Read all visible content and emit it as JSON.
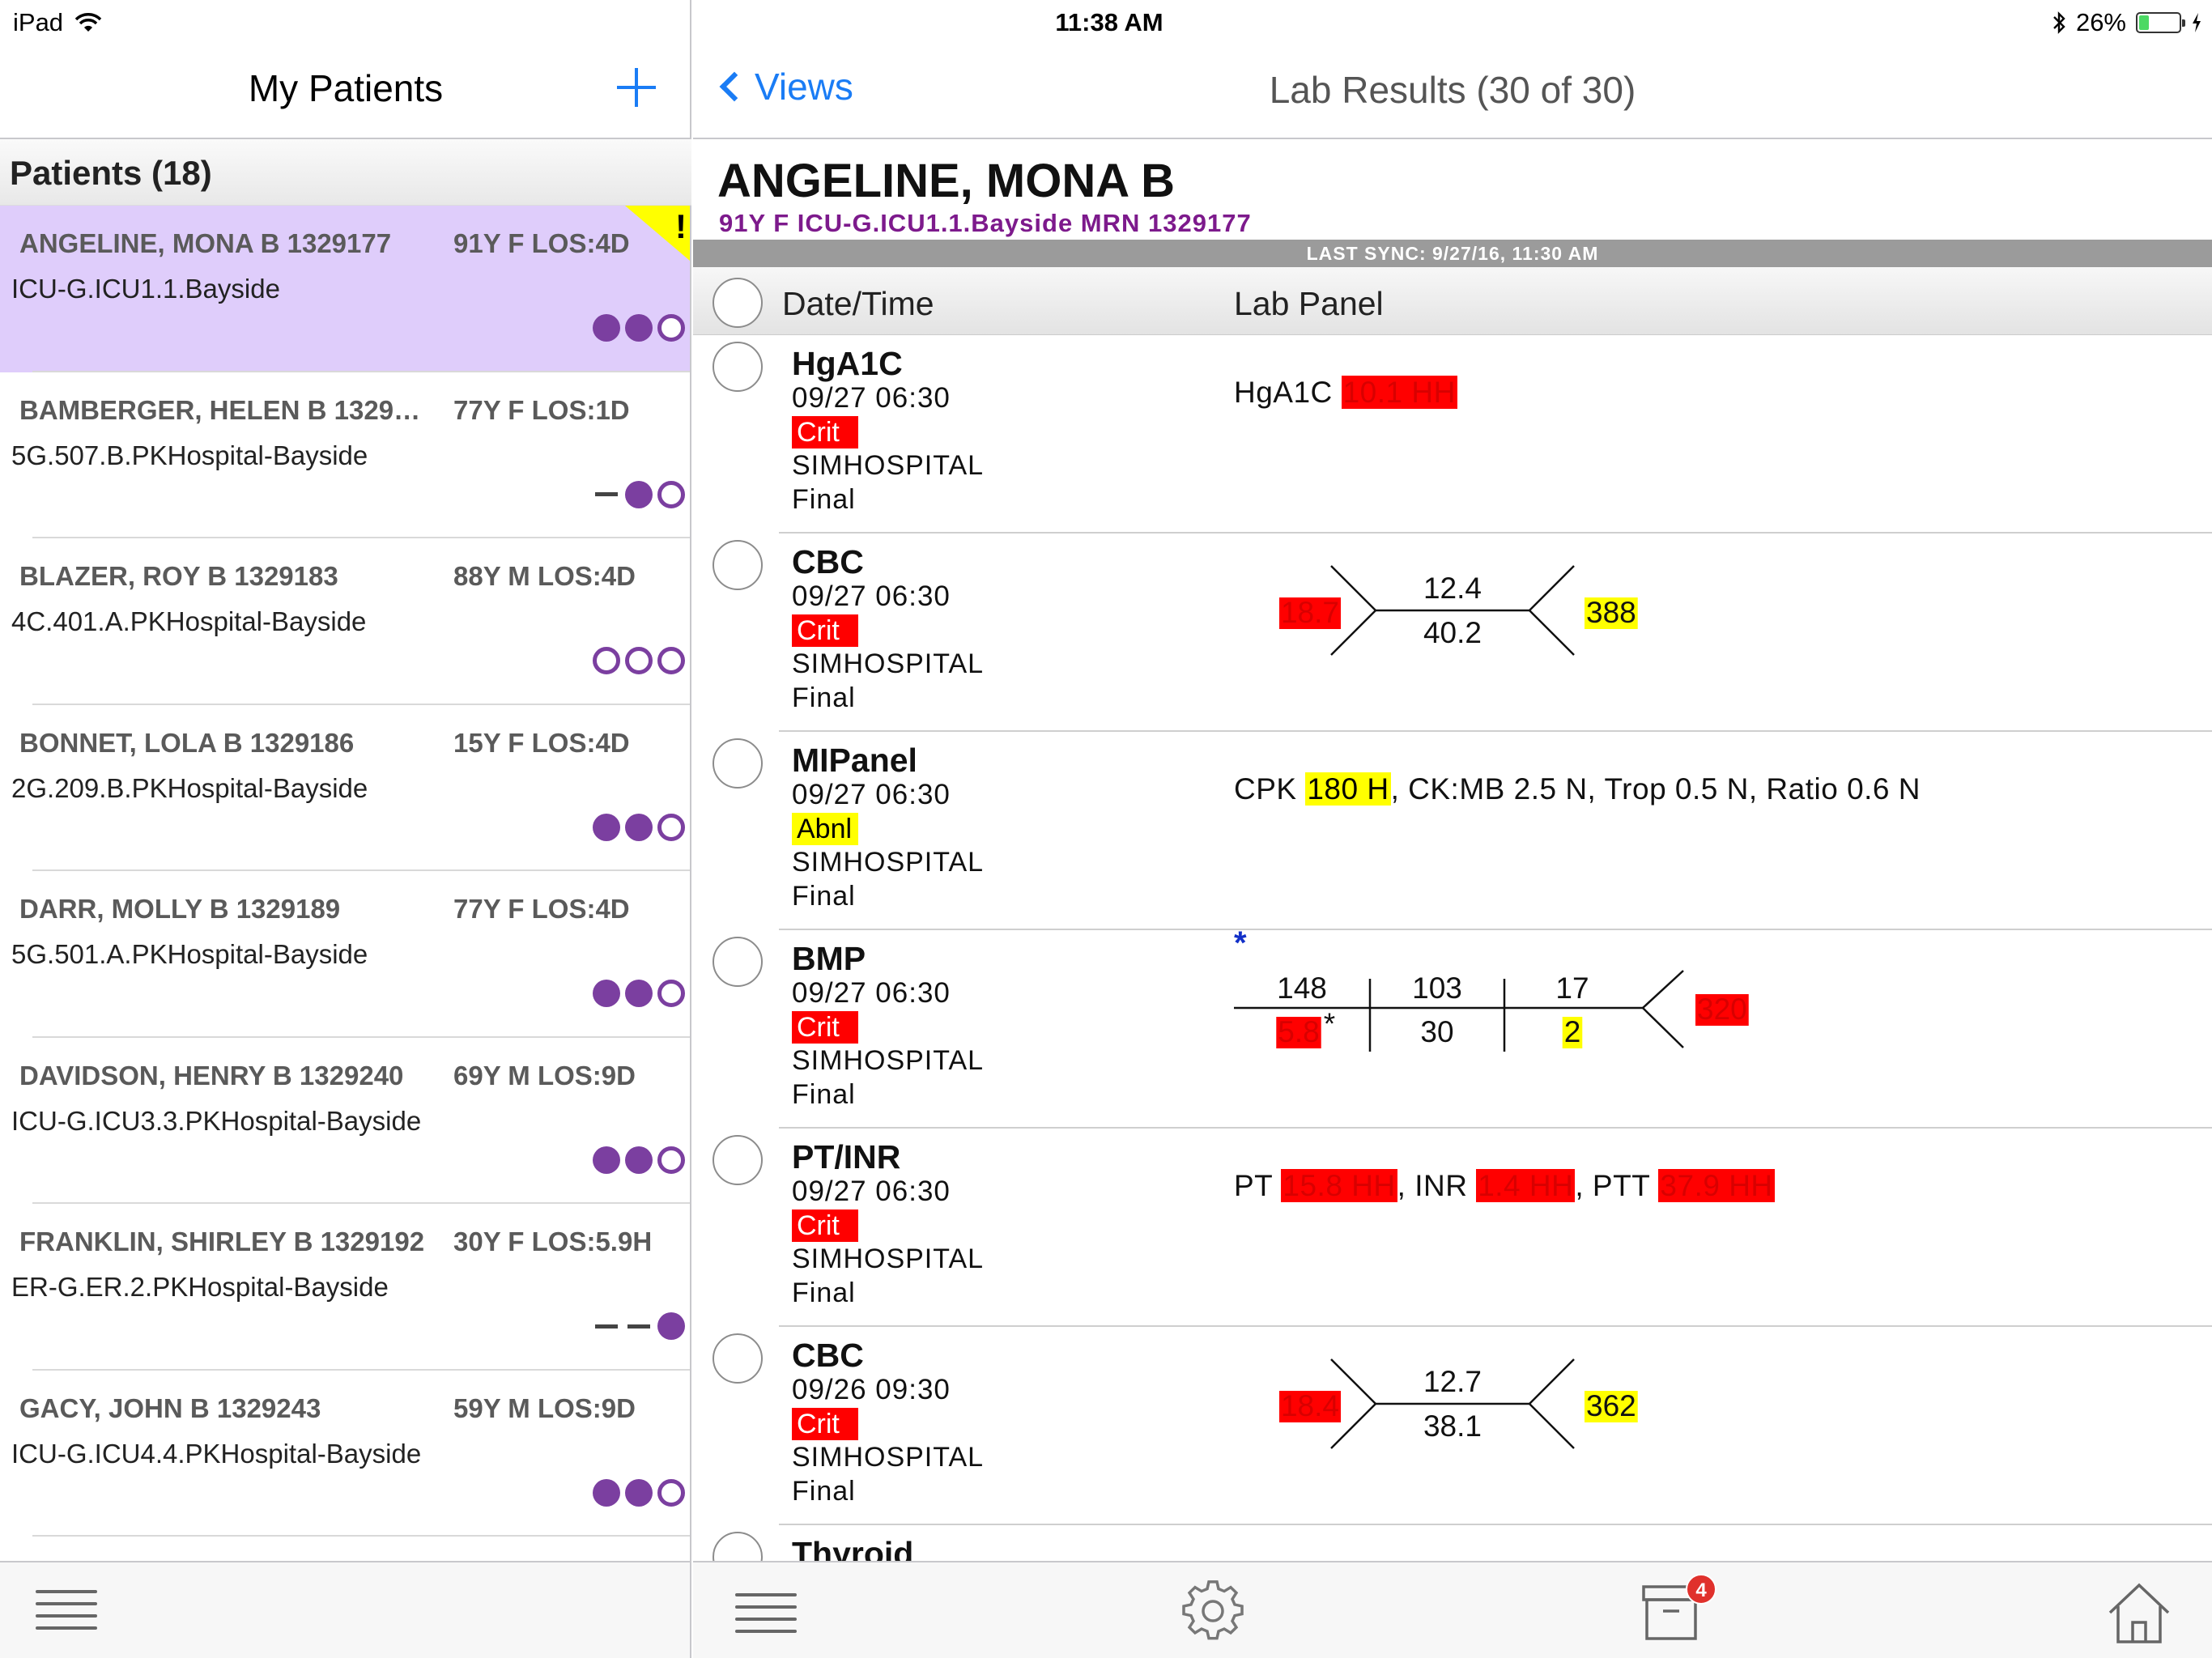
{
  "status_bar": {
    "device": "iPad",
    "time": "11:38 AM",
    "battery_percent": "26%",
    "battery_level": 0.26
  },
  "left_nav": {
    "title": "My Patients",
    "add_icon": "plus-icon"
  },
  "patients_header": "Patients (18)",
  "patients": [
    {
      "name": "ANGELINE, MONA B 1329177",
      "age": "91Y F LOS:4D",
      "location": "ICU-G.ICU1.1.Bayside",
      "indicators": [
        "filled",
        "filled",
        "empty"
      ],
      "selected": true,
      "alert": "!"
    },
    {
      "name": "BAMBERGER, HELEN B 1329…",
      "age": "77Y F LOS:1D",
      "location": "5G.507.B.PKHospital-Bayside",
      "indicators": [
        "dash",
        "filled",
        "empty"
      ],
      "selected": false
    },
    {
      "name": "BLAZER, ROY B 1329183",
      "age": "88Y M LOS:4D",
      "location": "4C.401.A.PKHospital-Bayside",
      "indicators": [
        "empty",
        "empty",
        "empty"
      ],
      "selected": false
    },
    {
      "name": "BONNET, LOLA B 1329186",
      "age": "15Y F LOS:4D",
      "location": "2G.209.B.PKHospital-Bayside",
      "indicators": [
        "filled",
        "filled",
        "empty"
      ],
      "selected": false
    },
    {
      "name": "DARR, MOLLY B 1329189",
      "age": "77Y F LOS:4D",
      "location": "5G.501.A.PKHospital-Bayside",
      "indicators": [
        "filled",
        "filled",
        "empty"
      ],
      "selected": false
    },
    {
      "name": "DAVIDSON, HENRY B 1329240",
      "age": "69Y M LOS:9D",
      "location": "ICU-G.ICU3.3.PKHospital-Bayside",
      "indicators": [
        "filled",
        "filled",
        "empty"
      ],
      "selected": false
    },
    {
      "name": "FRANKLIN, SHIRLEY B 1329192",
      "age": "30Y F LOS:5.9H",
      "location": "ER-G.ER.2.PKHospital-Bayside",
      "indicators": [
        "dash",
        "dash",
        "filled"
      ],
      "selected": false
    },
    {
      "name": "GACY, JOHN B 1329243",
      "age": "59Y M LOS:9D",
      "location": "ICU-G.ICU4.4.PKHospital-Bayside",
      "indicators": [
        "filled",
        "filled",
        "empty"
      ],
      "selected": false
    }
  ],
  "right_nav": {
    "back_label": "Views",
    "title": "Lab Results (30 of 30)"
  },
  "patient_header": {
    "name": "ANGELINE, MONA B",
    "info": "91Y F ICU-G.ICU1.1.Bayside MRN 1329177",
    "last_sync": "LAST SYNC: 9/27/16, 11:30 AM"
  },
  "columns": {
    "datetime": "Date/Time",
    "panel": "Lab Panel"
  },
  "labs": [
    {
      "panel": "HgA1C",
      "datetime": "09/27 06:30",
      "flag": "Crit",
      "source": "SIMHOSPITAL",
      "status": "Final",
      "result": {
        "type": "inline",
        "parts": [
          {
            "text": "HgA1C "
          },
          {
            "text": "10.1 HH",
            "hl": "red"
          }
        ]
      }
    },
    {
      "panel": "CBC",
      "datetime": "09/27 06:30",
      "flag": "Crit",
      "source": "SIMHOSPITAL",
      "status": "Final",
      "result": {
        "type": "cbc",
        "wbc": "18.7",
        "hgb": "12.4",
        "hct": "40.2",
        "plt": "388",
        "wbc_hl": "red",
        "plt_hl": "yellow"
      }
    },
    {
      "panel": "MIPanel",
      "datetime": "09/27 06:30",
      "flag": "Abnl",
      "source": "SIMHOSPITAL",
      "status": "Final",
      "result": {
        "type": "inline",
        "parts": [
          {
            "text": "CPK "
          },
          {
            "text": "180 H",
            "hl": "yellow"
          },
          {
            "text": ", CK:MB 2.5 N,  Trop 0.5 N,  Ratio 0.6 N"
          }
        ]
      }
    },
    {
      "panel": "BMP",
      "datetime": "09/27 06:30",
      "flag": "Crit",
      "source": "SIMHOSPITAL",
      "status": "Final",
      "result": {
        "type": "bmp",
        "asterisk": "*",
        "na": "148",
        "cl": "103",
        "bun": "17",
        "k": "5.8",
        "k_note": "*",
        "co2": "30",
        "cr": "2",
        "glu": "320"
      }
    },
    {
      "panel": "PT/INR",
      "datetime": "09/27 06:30",
      "flag": "Crit",
      "source": "SIMHOSPITAL",
      "status": "Final",
      "result": {
        "type": "inline",
        "parts": [
          {
            "text": "PT "
          },
          {
            "text": "15.8 HH",
            "hl": "red"
          },
          {
            "text": ",  INR "
          },
          {
            "text": "1.4 HH",
            "hl": "red"
          },
          {
            "text": ",  PTT "
          },
          {
            "text": "37.9 HH",
            "hl": "red"
          }
        ]
      }
    },
    {
      "panel": "CBC",
      "datetime": "09/26 09:30",
      "flag": "Crit",
      "source": "SIMHOSPITAL",
      "status": "Final",
      "result": {
        "type": "cbc",
        "wbc": "18.4",
        "hgb": "12.7",
        "hct": "38.1",
        "plt": "362",
        "wbc_hl": "red",
        "plt_hl": "yellow"
      }
    },
    {
      "panel": "Thyroid",
      "datetime": "",
      "flag": "",
      "source": "",
      "status": "",
      "result": {
        "type": "none"
      }
    }
  ],
  "tabbar_left": {
    "menu_icon": "hamburger-menu-icon"
  },
  "tabbar_right": {
    "menu_icon": "hamburger-menu-icon",
    "settings_icon": "gear-icon",
    "inbox_icon": "inbox-tray-icon",
    "inbox_badge": "4",
    "home_icon": "home-icon"
  },
  "colors": {
    "accent": "#1a7cf5",
    "purple": "#7b3fa0",
    "selected": "#dfcdfb",
    "crit": "#ff0000",
    "abnormal": "#ffff00",
    "patient_info": "#7d1a8c"
  }
}
